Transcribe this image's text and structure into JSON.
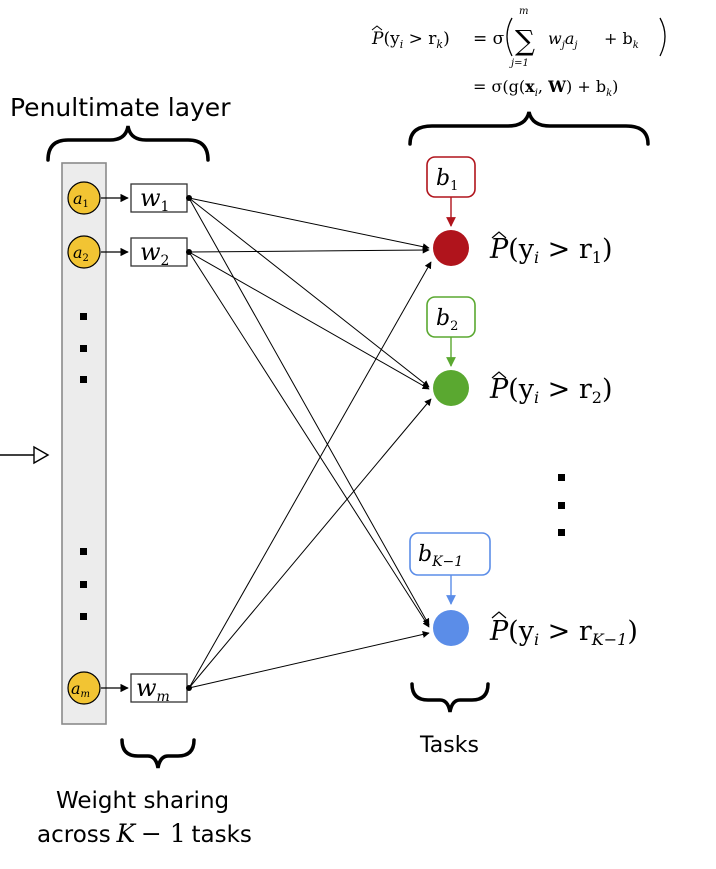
{
  "labels": {
    "penultimate_layer": "Penultimate layer",
    "tasks": "Tasks",
    "weight_sharing_line1": "Weight sharing",
    "weight_sharing_across": "across",
    "weight_sharing_K": "K",
    "weight_sharing_minus_one": "− 1",
    "weight_sharing_tasks": "tasks"
  },
  "formula": {
    "lhs_P": "P",
    "lhs_args": "(y",
    "lhs_sub_i": "i",
    "lhs_gt": " > r",
    "lhs_sub_k": "k",
    "lhs_close": ")",
    "eq1": "= σ",
    "sum_symbol": "∑",
    "sum_upper": "m",
    "sum_lower": "j=1",
    "sum_body": "w",
    "sum_body_sub_j": "j",
    "sum_body_a": "a",
    "sum_body_a_sub": "j",
    "plus_b": "+ b",
    "plus_b_sub": "k",
    "eq2": "= σ(g(",
    "x_bold": "x",
    "x_sub": "i",
    "comma": ", ",
    "W_bold": "W",
    "close2": ") + b",
    "close2_sub": "k",
    "close2_end": ")"
  },
  "neurons": [
    {
      "base": "a",
      "sub": "1"
    },
    {
      "base": "a",
      "sub": "2"
    },
    {
      "base": "a",
      "sub": "m"
    }
  ],
  "weights": [
    {
      "base": "w",
      "sub": "1"
    },
    {
      "base": "w",
      "sub": "2"
    },
    {
      "base": "w",
      "sub": "m"
    }
  ],
  "tasks": [
    {
      "bias_base": "b",
      "bias_sub": "1",
      "out_P": "P",
      "out_args": "(y",
      "out_sub_i": "i",
      "out_gt": " > r",
      "out_sub": "1",
      "out_close": ")",
      "color": "#b0141c"
    },
    {
      "bias_base": "b",
      "bias_sub": "2",
      "out_P": "P",
      "out_args": "(y",
      "out_sub_i": "i",
      "out_gt": " > r",
      "out_sub": "2",
      "out_close": ")",
      "color": "#5aa830"
    },
    {
      "bias_base": "b",
      "bias_sub": "K−1",
      "out_P": "P",
      "out_args": "(y",
      "out_sub_i": "i",
      "out_gt": " > r",
      "out_sub": "K−1",
      "out_close": ")",
      "color": "#5b8de8"
    }
  ],
  "colors": {
    "neuron_fill": "#f2c433",
    "layer_box_fill": "#ececec",
    "layer_box_stroke": "#8a8a8a"
  }
}
